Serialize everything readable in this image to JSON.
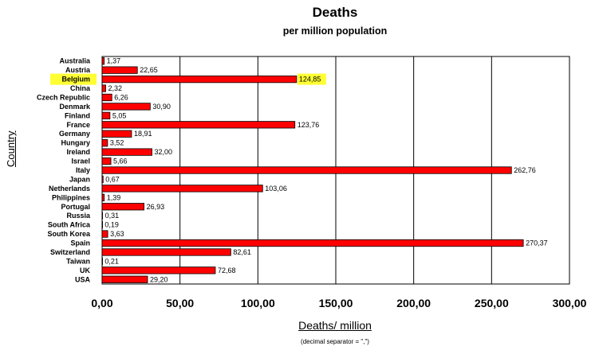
{
  "chart_data": {
    "type": "bar",
    "orientation": "horizontal",
    "title": "Deaths",
    "subtitle": "per million population",
    "xlabel": "Deaths/ million",
    "ylabel": "Country",
    "note": "(decimal separator = \",\")",
    "xlim": [
      0,
      300
    ],
    "xticks": [
      "0,00",
      "50,00",
      "100,00",
      "150,00",
      "200,00",
      "250,00",
      "300,00"
    ],
    "grid": "vertical",
    "bar_color": "#ff0000",
    "highlight_color": "#ffff33",
    "highlighted_category": "Belgium",
    "categories": [
      "Australia",
      "Austria",
      "Belgium",
      "China",
      "Czech Republic",
      "Denmark",
      "Finland",
      "France",
      "Germany",
      "Hungary",
      "Ireland",
      "Israel",
      "Italy",
      "Japan",
      "Netherlands",
      "Philippines",
      "Portugal",
      "Russia",
      "South Africa",
      "South Korea",
      "Spain",
      "Switzerland",
      "Taiwan",
      "UK",
      "USA"
    ],
    "values": [
      1.37,
      22.65,
      124.85,
      2.32,
      6.26,
      30.9,
      5.05,
      123.76,
      18.91,
      3.52,
      32.0,
      5.66,
      262.76,
      0.67,
      103.06,
      1.39,
      26.93,
      0.31,
      0.19,
      3.63,
      270.37,
      82.61,
      0.21,
      72.68,
      29.2
    ],
    "value_labels": [
      "1,37",
      "22,65",
      "124,85",
      "2,32",
      "6,26",
      "30,90",
      "5,05",
      "123,76",
      "18,91",
      "3,52",
      "32,00",
      "5,66",
      "262,76",
      "0,67",
      "103,06",
      "1,39",
      "26,93",
      "0,31",
      "0,19",
      "3,63",
      "270,37",
      "82,61",
      "0,21",
      "72,68",
      "29,20"
    ]
  }
}
